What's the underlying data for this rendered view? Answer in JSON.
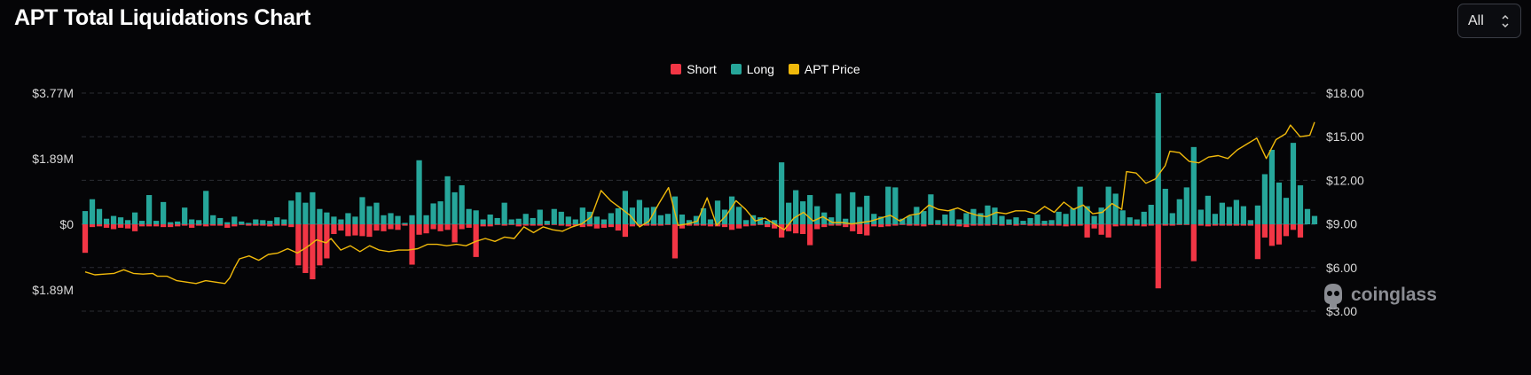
{
  "header": {
    "title": "APT Total Liquidations Chart",
    "range_select": {
      "value": "All"
    }
  },
  "legend": [
    {
      "label": "Short",
      "color": "#f23645"
    },
    {
      "label": "Long",
      "color": "#26a69a"
    },
    {
      "label": "APT Price",
      "color": "#f0b90b"
    }
  ],
  "watermark": {
    "text": "coinglass"
  },
  "chart_data": {
    "type": "bar",
    "title": "APT Total Liquidations Chart",
    "legend_position": "top-center",
    "grid": true,
    "y_left": {
      "ticks": [
        "$3.77M",
        "$1.89M",
        "$0",
        "$1.89M"
      ],
      "tick_values": [
        3.77,
        1.89,
        0,
        -1.89
      ],
      "range": [
        -2.5,
        3.77
      ],
      "unit": "$M"
    },
    "y_right": {
      "ticks": [
        "$18.00",
        "$15.00",
        "$12.00",
        "$9.00",
        "$6.00",
        "$3.00"
      ],
      "tick_values": [
        18,
        15,
        12,
        9,
        6,
        3
      ],
      "range": [
        3,
        18
      ],
      "unit": "$"
    },
    "series": [
      {
        "name": "Long",
        "type": "bar",
        "color": "#26a69a",
        "values": [
          0.38,
          0.72,
          0.44,
          0.16,
          0.24,
          0.2,
          0.12,
          0.34,
          0.1,
          0.84,
          0.1,
          0.64,
          0.06,
          0.08,
          0.48,
          0.14,
          0.12,
          0.96,
          0.26,
          0.18,
          0.06,
          0.22,
          0.08,
          0.04,
          0.14,
          0.12,
          0.1,
          0.2,
          0.14,
          0.68,
          0.92,
          0.62,
          0.92,
          0.44,
          0.34,
          0.22,
          0.14,
          0.32,
          0.22,
          0.78,
          0.52,
          0.62,
          0.26,
          0.32,
          0.24,
          0.04,
          0.26,
          1.84,
          0.26,
          0.6,
          0.66,
          1.38,
          0.92,
          1.12,
          0.44,
          0.4,
          0.14,
          0.28,
          0.18,
          0.62,
          0.14,
          0.16,
          0.3,
          0.18,
          0.42,
          0.1,
          0.44,
          0.36,
          0.22,
          0.14,
          0.48,
          0.36,
          0.22,
          0.14,
          0.32,
          0.46,
          0.96,
          0.48,
          0.7,
          0.48,
          0.5,
          0.26,
          0.3,
          0.8,
          0.28,
          0.12,
          0.24,
          0.46,
          0.14,
          0.68,
          0.42,
          0.8,
          0.5,
          0.12,
          0.26,
          0.2,
          0.1,
          0.12,
          1.78,
          0.62,
          0.98,
          0.66,
          0.84,
          0.52,
          0.34,
          0.2,
          0.88,
          0.16,
          0.92,
          0.5,
          0.82,
          0.3,
          0.22,
          1.08,
          1.06,
          0.16,
          0.24,
          0.5,
          0.38,
          0.86,
          0.12,
          0.28,
          0.42,
          0.14,
          0.32,
          0.44,
          0.32,
          0.54,
          0.48,
          0.24,
          0.14,
          0.2,
          0.1,
          0.18,
          0.28,
          0.1,
          0.12,
          0.36,
          0.3,
          0.46,
          1.08,
          0.52,
          0.24,
          0.48,
          1.08,
          0.88,
          0.4,
          0.2,
          0.14,
          0.36,
          0.56,
          3.77,
          1.02,
          0.32,
          0.72,
          1.06,
          2.22,
          0.42,
          0.82,
          0.3,
          0.62,
          0.5,
          0.7,
          0.52,
          0.12,
          0.54,
          1.44,
          2.14,
          1.2,
          0.76,
          2.34,
          1.12,
          0.44,
          0.24
        ],
        "note": "approximate values in $M, read from bar heights"
      },
      {
        "name": "Short",
        "type": "bar",
        "color": "#f23645",
        "values": [
          -0.82,
          -0.08,
          -0.06,
          -0.1,
          -0.14,
          -0.1,
          -0.12,
          -0.2,
          -0.06,
          -0.06,
          -0.06,
          -0.08,
          -0.08,
          -0.06,
          -0.04,
          -0.1,
          -0.04,
          -0.06,
          -0.04,
          -0.04,
          -0.1,
          -0.06,
          -0.02,
          -0.04,
          -0.04,
          -0.04,
          -0.06,
          -0.04,
          -0.04,
          -0.08,
          -1.18,
          -1.4,
          -1.58,
          -1.18,
          -0.98,
          -0.28,
          -0.18,
          -0.34,
          -0.32,
          -0.34,
          -0.36,
          -0.18,
          -0.2,
          -0.14,
          -0.16,
          -0.04,
          -1.16,
          -0.3,
          -0.26,
          -0.14,
          -0.2,
          -0.16,
          -0.52,
          -0.14,
          -0.1,
          -0.94,
          -0.06,
          -0.06,
          -0.02,
          -0.04,
          -0.02,
          -0.06,
          -0.04,
          -0.04,
          -0.04,
          -0.02,
          -0.02,
          -0.04,
          -0.06,
          -0.04,
          -0.08,
          -0.06,
          -0.12,
          -0.1,
          -0.08,
          -0.18,
          -0.36,
          -0.06,
          -0.04,
          -0.04,
          -0.04,
          -0.04,
          -0.02,
          -0.98,
          -0.12,
          -0.04,
          -0.04,
          -0.04,
          -0.06,
          -0.06,
          -0.08,
          -0.16,
          -0.12,
          -0.06,
          -0.04,
          -0.02,
          -0.08,
          -0.12,
          -0.38,
          -0.2,
          -0.26,
          -0.28,
          -0.6,
          -0.14,
          -0.08,
          -0.04,
          -0.04,
          -0.08,
          -0.2,
          -0.28,
          -0.32,
          -0.06,
          -0.08,
          -0.06,
          -0.04,
          -0.02,
          -0.04,
          -0.04,
          -0.06,
          -0.02,
          -0.02,
          -0.04,
          -0.04,
          -0.06,
          -0.08,
          -0.04,
          -0.04,
          -0.04,
          -0.02,
          -0.04,
          -0.02,
          -0.04,
          -0.02,
          -0.04,
          -0.04,
          -0.04,
          -0.04,
          -0.04,
          -0.06,
          -0.04,
          -0.04,
          -0.38,
          -0.12,
          -0.3,
          -0.38,
          -0.06,
          -0.04,
          -0.04,
          -0.04,
          -0.06,
          -0.04,
          -1.84,
          -0.04,
          -0.04,
          -0.02,
          -0.02,
          -1.06,
          -0.04,
          -0.06,
          -0.04,
          -0.04,
          -0.04,
          -0.04,
          -0.04,
          -0.04,
          -1.0,
          -0.38,
          -0.62,
          -0.58,
          -0.34,
          -0.16,
          -0.38
        ],
        "note": "approximate values in $M, drawn below zero"
      },
      {
        "name": "APT Price",
        "type": "line",
        "axis": "right",
        "color": "#f0b90b",
        "points": [
          [
            0,
            5.7
          ],
          [
            2,
            5.5
          ],
          [
            4,
            5.55
          ],
          [
            6,
            5.6
          ],
          [
            8,
            5.85
          ],
          [
            10,
            5.6
          ],
          [
            12,
            5.55
          ],
          [
            14,
            5.6
          ],
          [
            15,
            5.4
          ],
          [
            17,
            5.4
          ],
          [
            19,
            5.1
          ],
          [
            21,
            5.0
          ],
          [
            23,
            4.9
          ],
          [
            25,
            5.1
          ],
          [
            27,
            5.0
          ],
          [
            29,
            4.9
          ],
          [
            30,
            5.3
          ],
          [
            31,
            6.0
          ],
          [
            32,
            6.6
          ],
          [
            34,
            6.8
          ],
          [
            36,
            6.5
          ],
          [
            38,
            6.9
          ],
          [
            40,
            7.0
          ],
          [
            42,
            7.3
          ],
          [
            44,
            7.0
          ],
          [
            46,
            7.4
          ],
          [
            48,
            7.9
          ],
          [
            50,
            7.7
          ],
          [
            51,
            8.0
          ],
          [
            53,
            7.2
          ],
          [
            55,
            7.5
          ],
          [
            57,
            7.1
          ],
          [
            59,
            7.5
          ],
          [
            61,
            7.2
          ],
          [
            63,
            7.1
          ],
          [
            65,
            7.2
          ],
          [
            67,
            7.2
          ],
          [
            69,
            7.3
          ],
          [
            71,
            7.6
          ],
          [
            73,
            7.6
          ],
          [
            75,
            7.5
          ],
          [
            77,
            7.6
          ],
          [
            79,
            7.5
          ],
          [
            81,
            7.8
          ],
          [
            83,
            8.0
          ],
          [
            85,
            7.8
          ],
          [
            87,
            8.1
          ],
          [
            89,
            8.0
          ],
          [
            91,
            8.8
          ],
          [
            93,
            8.4
          ],
          [
            95,
            8.8
          ],
          [
            97,
            8.6
          ],
          [
            99,
            8.5
          ],
          [
            101,
            8.8
          ],
          [
            103,
            9.0
          ],
          [
            105,
            9.5
          ],
          [
            107,
            11.3
          ],
          [
            109,
            10.6
          ],
          [
            111,
            10.1
          ],
          [
            113,
            9.6
          ],
          [
            115,
            8.8
          ],
          [
            117,
            9.2
          ],
          [
            119,
            10.4
          ],
          [
            121,
            11.5
          ],
          [
            123,
            8.9
          ],
          [
            125,
            9.0
          ],
          [
            127,
            9.2
          ],
          [
            129,
            10.8
          ],
          [
            131,
            8.9
          ],
          [
            133,
            9.6
          ],
          [
            135,
            10.6
          ],
          [
            137,
            10.0
          ],
          [
            139,
            9.2
          ],
          [
            141,
            9.4
          ],
          [
            143,
            9.0
          ],
          [
            145,
            8.6
          ],
          [
            147,
            9.4
          ],
          [
            149,
            9.8
          ],
          [
            151,
            9.2
          ],
          [
            153,
            9.5
          ],
          [
            155,
            9.1
          ],
          [
            157,
            9.1
          ],
          [
            159,
            9.0
          ],
          [
            161,
            9.1
          ],
          [
            163,
            9.2
          ],
          [
            165,
            9.4
          ],
          [
            167,
            9.6
          ],
          [
            169,
            9.2
          ],
          [
            171,
            9.6
          ],
          [
            173,
            9.7
          ],
          [
            175,
            10.3
          ],
          [
            177,
            10.0
          ],
          [
            179,
            9.9
          ],
          [
            181,
            10.1
          ],
          [
            183,
            9.8
          ],
          [
            185,
            9.6
          ],
          [
            187,
            9.5
          ],
          [
            189,
            9.8
          ],
          [
            191,
            9.7
          ],
          [
            193,
            9.9
          ],
          [
            195,
            9.9
          ],
          [
            197,
            9.7
          ],
          [
            199,
            10.2
          ],
          [
            201,
            9.8
          ],
          [
            203,
            10.5
          ],
          [
            205,
            10.0
          ],
          [
            207,
            10.3
          ],
          [
            209,
            9.7
          ],
          [
            211,
            9.8
          ],
          [
            213,
            10.4
          ],
          [
            215,
            10.0
          ],
          [
            216,
            12.6
          ],
          [
            218,
            12.5
          ],
          [
            220,
            11.8
          ],
          [
            222,
            12.1
          ],
          [
            224,
            13.0
          ],
          [
            225,
            14.0
          ],
          [
            227,
            13.9
          ],
          [
            229,
            13.3
          ],
          [
            231,
            13.2
          ],
          [
            233,
            13.6
          ],
          [
            235,
            13.7
          ],
          [
            237,
            13.5
          ],
          [
            239,
            14.1
          ],
          [
            241,
            14.5
          ],
          [
            243,
            14.9
          ],
          [
            245,
            13.5
          ],
          [
            247,
            14.8
          ],
          [
            249,
            15.2
          ],
          [
            250,
            15.8
          ],
          [
            252,
            15.0
          ],
          [
            254,
            15.1
          ],
          [
            255,
            16.0
          ]
        ],
        "note": "approximate price in $ vs. bar index (0–255 scaled to bar count)"
      }
    ]
  }
}
